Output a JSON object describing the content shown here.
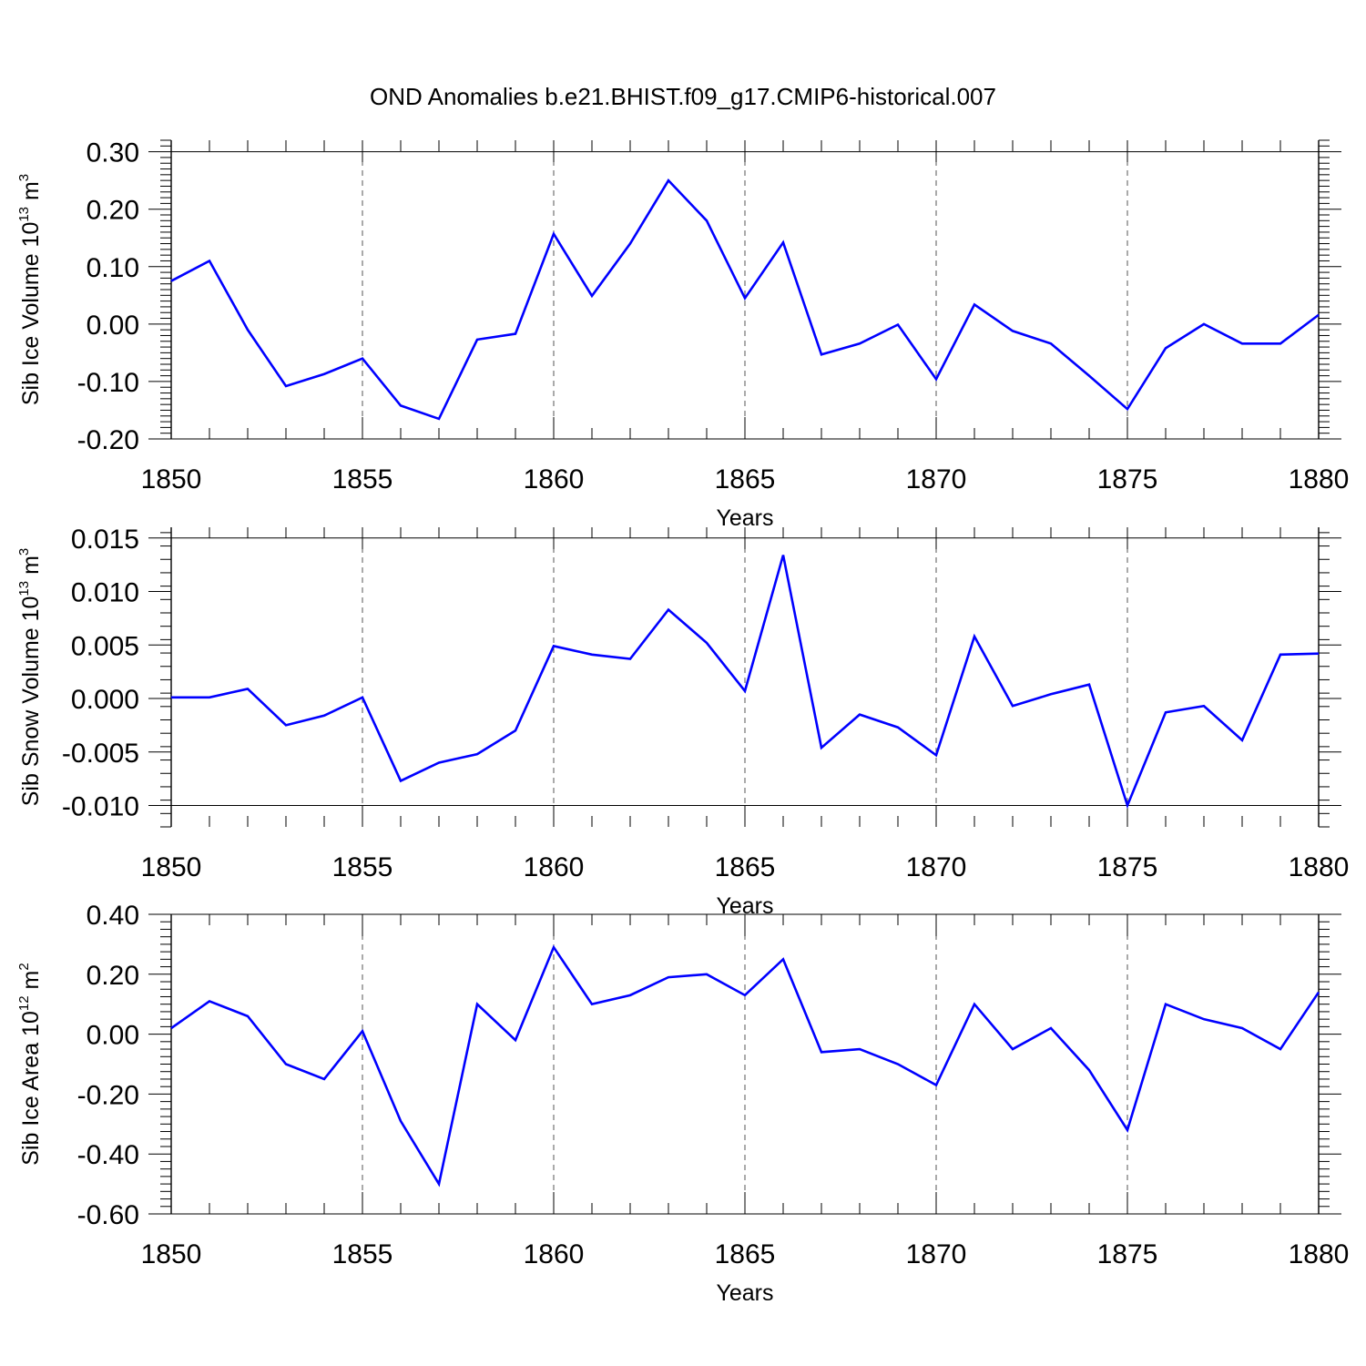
{
  "figure": {
    "title": "OND Anomalies b.e21.BHIST.f09_g17.CMIP6-historical.007"
  },
  "colors": {
    "series": "#0000ff",
    "axis": "#000000",
    "grid": "#555555"
  },
  "chart_data": [
    {
      "type": "line",
      "ylabel": {
        "main": "Sib Ice Volume 10",
        "exponent": "13",
        "unit": "m",
        "unit_exponent": "3"
      },
      "xlabel": "Years",
      "xlim": [
        1850,
        1880
      ],
      "ylim": [
        -0.2,
        0.32
      ],
      "x_ticks": [
        1850,
        1855,
        1860,
        1865,
        1870,
        1875,
        1880
      ],
      "x_tick_labels": [
        "1850",
        "1855",
        "1860",
        "1865",
        "1870",
        "1875",
        "1880"
      ],
      "y_ticks": [
        -0.2,
        -0.1,
        0.0,
        0.1,
        0.2,
        0.3
      ],
      "y_tick_labels": [
        "-0.20",
        "-0.10",
        "0.00",
        "0.10",
        "0.20",
        "0.30"
      ],
      "grid": "vertical dashed at major x ticks",
      "series": [
        {
          "x": [
            1850,
            1851,
            1852,
            1853,
            1854,
            1855,
            1856,
            1857,
            1858,
            1859,
            1860,
            1861,
            1862,
            1863,
            1864,
            1865,
            1866,
            1867,
            1868,
            1869,
            1870,
            1871,
            1872,
            1873,
            1874,
            1875,
            1876,
            1877,
            1878,
            1879,
            1880
          ],
          "values": [
            0.075,
            0.11,
            -0.01,
            -0.108,
            -0.087,
            -0.06,
            -0.142,
            -0.165,
            -0.027,
            -0.017,
            0.157,
            0.049,
            0.14,
            0.25,
            0.18,
            0.045,
            0.142,
            -0.053,
            -0.034,
            -0.001,
            -0.096,
            0.034,
            -0.012,
            -0.034,
            -0.09,
            -0.148,
            -0.042,
            0.0,
            -0.034,
            -0.034,
            0.016
          ]
        }
      ]
    },
    {
      "type": "line",
      "ylabel": {
        "main": "Sib Snow Volume 10",
        "exponent": "13",
        "unit": "m",
        "unit_exponent": "3"
      },
      "xlabel": "Years",
      "xlim": [
        1850,
        1880
      ],
      "ylim": [
        -0.012,
        0.016
      ],
      "x_ticks": [
        1850,
        1855,
        1860,
        1865,
        1870,
        1875,
        1880
      ],
      "x_tick_labels": [
        "1850",
        "1855",
        "1860",
        "1865",
        "1870",
        "1875",
        "1880"
      ],
      "y_ticks": [
        -0.01,
        -0.005,
        0.0,
        0.005,
        0.01,
        0.015
      ],
      "y_tick_labels": [
        "-0.010",
        "-0.005",
        "0.000",
        "0.005",
        "0.010",
        "0.015"
      ],
      "grid": "vertical dashed at major x ticks",
      "series": [
        {
          "x": [
            1850,
            1851,
            1852,
            1853,
            1854,
            1855,
            1856,
            1857,
            1858,
            1859,
            1860,
            1861,
            1862,
            1863,
            1864,
            1865,
            1866,
            1867,
            1868,
            1869,
            1870,
            1871,
            1872,
            1873,
            1874,
            1875,
            1876,
            1877,
            1878,
            1879,
            1880
          ],
          "values": [
            0.0001,
            0.0001,
            0.0009,
            -0.0025,
            -0.0016,
            0.0001,
            -0.0077,
            -0.006,
            -0.0052,
            -0.003,
            0.0049,
            0.0041,
            0.0037,
            0.0083,
            0.0052,
            0.0007,
            0.0134,
            -0.0046,
            -0.0015,
            -0.0027,
            -0.0053,
            0.0058,
            -0.0007,
            0.0004,
            0.0013,
            -0.01,
            -0.0013,
            -0.0007,
            -0.0039,
            0.0041,
            0.0042
          ]
        }
      ]
    },
    {
      "type": "line",
      "ylabel": {
        "main": "Sib Ice Area 10",
        "exponent": "12",
        "unit": "m",
        "unit_exponent": "2"
      },
      "xlabel": "Years",
      "xlim": [
        1850,
        1880
      ],
      "ylim": [
        -0.6,
        0.4
      ],
      "x_ticks": [
        1850,
        1855,
        1860,
        1865,
        1870,
        1875,
        1880
      ],
      "x_tick_labels": [
        "1850",
        "1855",
        "1860",
        "1865",
        "1870",
        "1875",
        "1880"
      ],
      "y_ticks": [
        -0.6,
        -0.4,
        -0.2,
        0.0,
        0.2,
        0.4
      ],
      "y_tick_labels": [
        "-0.60",
        "-0.40",
        "-0.20",
        "0.00",
        "0.20",
        "0.40"
      ],
      "grid": "vertical dashed at major x ticks",
      "series": [
        {
          "x": [
            1850,
            1851,
            1852,
            1853,
            1854,
            1855,
            1856,
            1857,
            1858,
            1859,
            1860,
            1861,
            1862,
            1863,
            1864,
            1865,
            1866,
            1867,
            1868,
            1869,
            1870,
            1871,
            1872,
            1873,
            1874,
            1875,
            1876,
            1877,
            1878,
            1879,
            1880
          ],
          "values": [
            0.02,
            0.11,
            0.06,
            -0.1,
            -0.15,
            0.01,
            -0.29,
            -0.5,
            0.1,
            -0.02,
            0.29,
            0.1,
            0.13,
            0.19,
            0.2,
            0.13,
            0.25,
            -0.06,
            -0.05,
            -0.1,
            -0.17,
            0.1,
            -0.05,
            0.02,
            -0.12,
            -0.32,
            0.1,
            0.05,
            0.02,
            -0.05,
            0.14
          ]
        }
      ]
    }
  ]
}
